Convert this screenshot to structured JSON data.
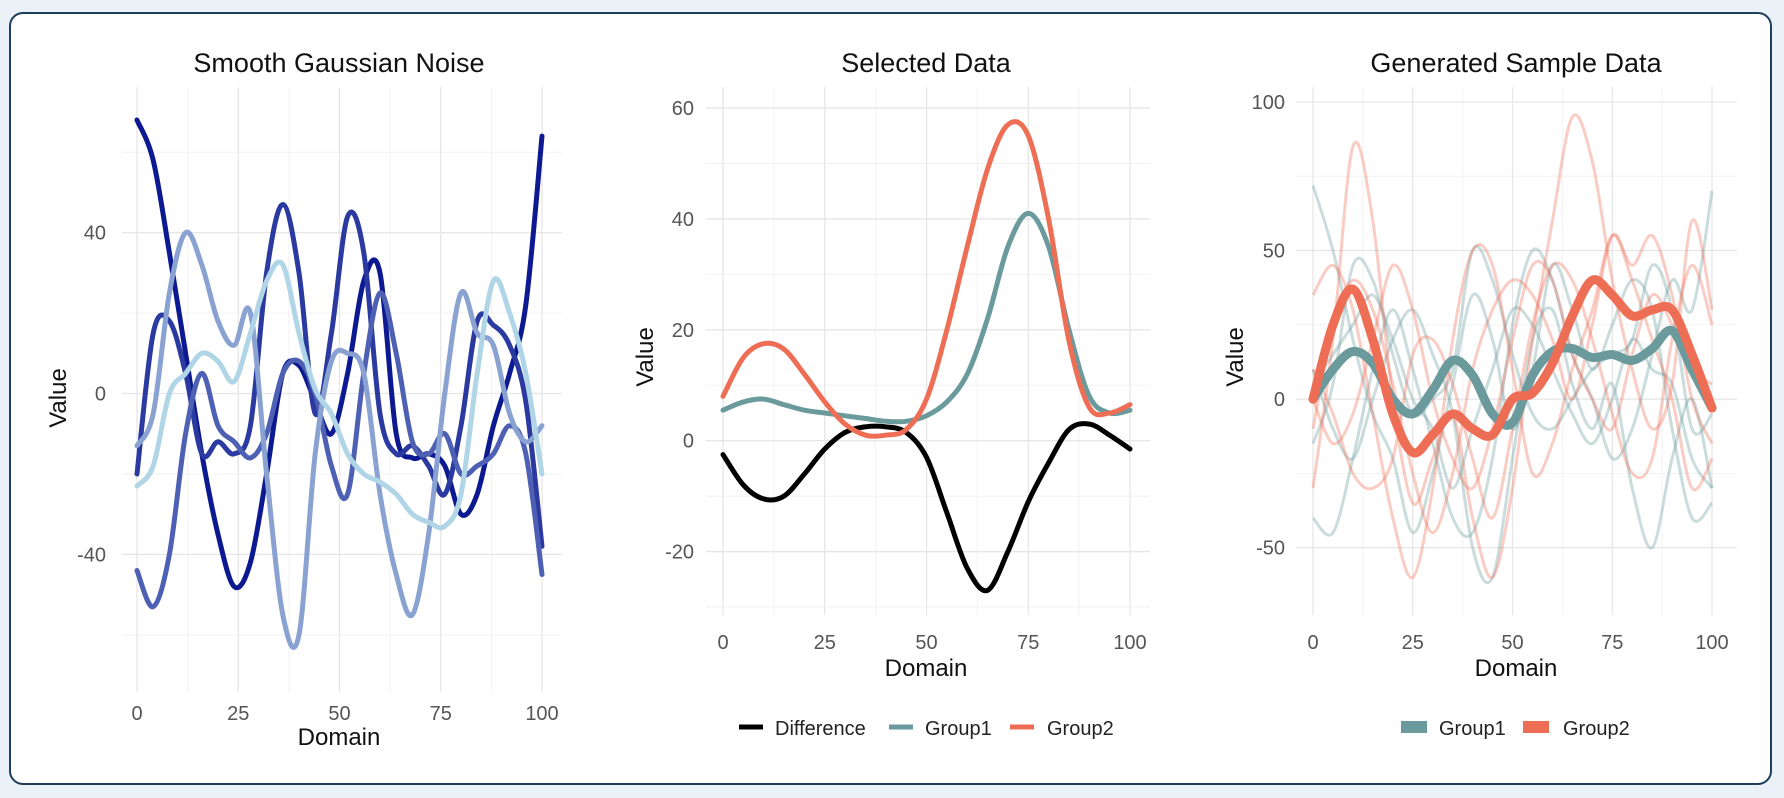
{
  "colors": {
    "noise": [
      "#0d1990",
      "#2b3aa0",
      "#4e60b4",
      "#8aa2d2",
      "#b0d5e6"
    ],
    "difference": "#000000",
    "group1": "#6b9a9d",
    "group2": "#ee6e55"
  },
  "chart_data": [
    {
      "type": "line",
      "title": "Smooth Gaussian Noise",
      "xlabel": "Domain",
      "ylabel": "Value",
      "xlim": [
        0,
        100
      ],
      "ylim": [
        -68,
        70
      ],
      "xticks": [
        0,
        25,
        50,
        75,
        100
      ],
      "yticks": [
        -40,
        0,
        40
      ],
      "xtick_labels": [
        "0",
        "25",
        "50",
        "75",
        "100"
      ],
      "ytick_labels": [
        "-40",
        "0",
        "40"
      ],
      "legend": "none",
      "series": [
        {
          "x": [
            0,
            4,
            8,
            12,
            16,
            20,
            24,
            28,
            32,
            36,
            40,
            44,
            48,
            52,
            56,
            60,
            64,
            68,
            72,
            76,
            80,
            84,
            88,
            92,
            96,
            100
          ],
          "values": [
            68,
            58,
            35,
            10,
            -15,
            -35,
            -48,
            -42,
            -20,
            5,
            7,
            -2,
            -10,
            5,
            28,
            30,
            -10,
            -16,
            -15,
            -18,
            -30,
            -25,
            -8,
            5,
            22,
            64
          ],
          "color": 0
        },
        {
          "x": [
            0,
            4,
            8,
            12,
            16,
            20,
            24,
            28,
            32,
            36,
            40,
            44,
            48,
            52,
            56,
            60,
            64,
            68,
            72,
            76,
            80,
            84,
            88,
            92,
            96,
            100
          ],
          "values": [
            -20,
            15,
            18,
            5,
            -15,
            -12,
            -15,
            -8,
            30,
            47,
            30,
            -5,
            15,
            44,
            35,
            -5,
            -15,
            -13,
            -18,
            -25,
            -8,
            18,
            17,
            12,
            -2,
            -38
          ],
          "color": 1
        },
        {
          "x": [
            0,
            4,
            8,
            12,
            16,
            20,
            24,
            28,
            32,
            36,
            40,
            44,
            48,
            52,
            56,
            60,
            64,
            68,
            72,
            76,
            80,
            84,
            88,
            92,
            96,
            100
          ],
          "values": [
            -44,
            -53,
            -40,
            -10,
            5,
            -8,
            -12,
            -16,
            -10,
            5,
            8,
            0,
            -18,
            -25,
            5,
            25,
            10,
            -12,
            -15,
            -10,
            -20,
            -18,
            -15,
            -8,
            -15,
            -45
          ],
          "color": 2
        },
        {
          "x": [
            0,
            4,
            8,
            12,
            16,
            20,
            24,
            28,
            32,
            36,
            40,
            44,
            48,
            52,
            56,
            60,
            64,
            68,
            72,
            76,
            80,
            84,
            88,
            92,
            96,
            100
          ],
          "values": [
            -13,
            -5,
            25,
            40,
            32,
            18,
            12,
            20,
            -20,
            -55,
            -60,
            -15,
            8,
            10,
            5,
            -25,
            -45,
            -55,
            -35,
            0,
            25,
            15,
            12,
            -5,
            -12,
            -8
          ],
          "color": 3
        },
        {
          "x": [
            0,
            4,
            8,
            12,
            16,
            20,
            24,
            28,
            32,
            36,
            40,
            44,
            48,
            52,
            56,
            60,
            64,
            68,
            72,
            76,
            80,
            84,
            88,
            92,
            96,
            100
          ],
          "values": [
            -23,
            -18,
            0,
            5,
            10,
            8,
            3,
            15,
            28,
            32,
            15,
            1,
            -5,
            -15,
            -20,
            -22,
            -25,
            -30,
            -32,
            -33,
            -25,
            5,
            28,
            20,
            5,
            -20
          ],
          "color": 4
        }
      ]
    },
    {
      "type": "line",
      "title": "Selected Data",
      "xlabel": "Domain",
      "ylabel": "Value",
      "xlim": [
        0,
        100
      ],
      "ylim": [
        -30,
        62
      ],
      "xticks": [
        0,
        25,
        50,
        75,
        100
      ],
      "yticks": [
        -20,
        0,
        20,
        40,
        60
      ],
      "xtick_labels": [
        "0",
        "25",
        "50",
        "75",
        "100"
      ],
      "ytick_labels": [
        "-20",
        "0",
        "20",
        "40",
        "60"
      ],
      "legend": "bottom",
      "series": [
        {
          "name": "Difference",
          "x": [
            0,
            5,
            10,
            15,
            20,
            25,
            30,
            35,
            40,
            45,
            50,
            55,
            60,
            65,
            70,
            75,
            80,
            85,
            90,
            95,
            100
          ],
          "values": [
            -2.5,
            -8,
            -10.5,
            -10,
            -6,
            -1.5,
            1.5,
            2.5,
            2.5,
            1.5,
            -3,
            -13,
            -23,
            -27,
            -20,
            -11,
            -4,
            2,
            3,
            1,
            -1.5
          ]
        },
        {
          "name": "Group1",
          "x": [
            0,
            5,
            10,
            15,
            20,
            25,
            30,
            35,
            40,
            45,
            50,
            55,
            60,
            65,
            70,
            75,
            80,
            85,
            90,
            95,
            100
          ],
          "values": [
            5.5,
            7,
            7.5,
            6.5,
            5.5,
            5,
            4.5,
            4,
            3.5,
            3.5,
            4.5,
            7,
            12,
            22,
            35,
            41,
            35,
            20,
            8,
            5,
            5.5
          ]
        },
        {
          "name": "Group2",
          "x": [
            0,
            5,
            10,
            15,
            20,
            25,
            30,
            35,
            40,
            45,
            50,
            55,
            60,
            65,
            70,
            75,
            80,
            85,
            90,
            95,
            100
          ],
          "values": [
            8,
            15,
            17.5,
            16.5,
            12,
            7,
            3,
            1,
            1,
            2,
            7.5,
            20,
            35,
            49,
            57,
            55,
            40,
            18,
            6,
            5,
            6.5
          ]
        }
      ]
    },
    {
      "type": "line",
      "title": "Generated Sample Data",
      "xlabel": "Domain",
      "ylabel": "Value",
      "xlim": [
        0,
        100
      ],
      "ylim": [
        -70,
        100
      ],
      "xticks": [
        0,
        25,
        50,
        75,
        100
      ],
      "yticks": [
        -50,
        0,
        50,
        100
      ],
      "xtick_labels": [
        "0",
        "25",
        "50",
        "75",
        "100"
      ],
      "ytick_labels": [
        "-50",
        "0",
        "50",
        "100"
      ],
      "legend": "bottom",
      "series": [
        {
          "name": "Group1",
          "x": [
            0,
            5,
            10,
            15,
            20,
            25,
            30,
            35,
            40,
            45,
            50,
            55,
            60,
            65,
            70,
            75,
            80,
            85,
            90,
            95,
            100
          ],
          "values": [
            0,
            10,
            16,
            12,
            0,
            -5,
            3,
            13,
            8,
            -5,
            -8,
            8,
            16,
            17,
            14,
            15,
            13,
            17,
            23,
            10,
            -3
          ]
        },
        {
          "name": "Group2",
          "x": [
            0,
            5,
            10,
            15,
            20,
            25,
            30,
            35,
            40,
            45,
            50,
            55,
            60,
            65,
            70,
            75,
            80,
            85,
            90,
            95,
            100
          ],
          "values": [
            0,
            25,
            37,
            20,
            -5,
            -18,
            -12,
            -5,
            -10,
            -12,
            0,
            2,
            12,
            28,
            40,
            35,
            28,
            30,
            30,
            15,
            -3
          ]
        }
      ],
      "background_series": {
        "x": [
          0,
          5,
          10,
          15,
          20,
          25,
          30,
          35,
          40,
          45,
          50,
          55,
          60,
          65,
          70,
          75,
          80,
          85,
          90,
          95,
          100
        ],
        "group1": [
          [
            72,
            50,
            20,
            -5,
            -20,
            -45,
            -25,
            5,
            35,
            20,
            -10,
            10,
            45,
            30,
            10,
            25,
            40,
            30,
            -10,
            -40,
            -35
          ],
          [
            -40,
            -45,
            -20,
            10,
            30,
            10,
            -15,
            -40,
            -45,
            -20,
            25,
            50,
            40,
            15,
            0,
            -20,
            -10,
            15,
            40,
            30,
            70
          ],
          [
            -15,
            5,
            45,
            40,
            15,
            -5,
            0,
            10,
            50,
            40,
            15,
            -5,
            -10,
            0,
            10,
            15,
            20,
            45,
            30,
            -10,
            -5
          ],
          [
            10,
            -10,
            -20,
            0,
            20,
            30,
            15,
            -5,
            -50,
            -60,
            -20,
            20,
            30,
            5,
            -10,
            5,
            -30,
            -50,
            -20,
            0,
            -30
          ],
          [
            5,
            15,
            25,
            35,
            20,
            0,
            -10,
            -30,
            -10,
            10,
            30,
            25,
            10,
            -5,
            -15,
            0,
            20,
            10,
            5,
            -20,
            -30
          ]
        ],
        "group2": [
          [
            35,
            45,
            30,
            -5,
            -40,
            -60,
            -30,
            20,
            50,
            45,
            10,
            -25,
            -15,
            10,
            30,
            55,
            40,
            20,
            0,
            -30,
            -20
          ],
          [
            -30,
            20,
            85,
            60,
            0,
            -35,
            -20,
            -5,
            -40,
            -60,
            -30,
            20,
            60,
            95,
            80,
            40,
            10,
            -10,
            5,
            60,
            30
          ],
          [
            10,
            -5,
            -25,
            -30,
            -20,
            15,
            20,
            5,
            -20,
            -40,
            -10,
            25,
            45,
            40,
            20,
            -5,
            -25,
            -20,
            20,
            45,
            25
          ],
          [
            -10,
            25,
            40,
            30,
            5,
            -25,
            -45,
            -25,
            10,
            30,
            40,
            35,
            20,
            0,
            25,
            55,
            45,
            55,
            35,
            0,
            -15
          ],
          [
            0,
            -15,
            -5,
            20,
            45,
            30,
            0,
            -20,
            -30,
            -10,
            20,
            45,
            40,
            15,
            0,
            -10,
            15,
            35,
            25,
            10,
            5
          ]
        ]
      }
    }
  ]
}
